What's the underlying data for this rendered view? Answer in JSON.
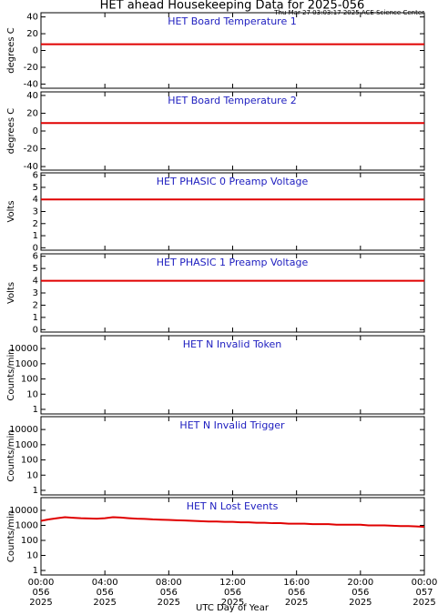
{
  "header": {
    "title": "HET ahead Housekeeping Data for 2025-056",
    "subtitle": "Thu Mar 27 03:03:17 2025 ACE Science Center"
  },
  "chart_data": [
    {
      "type": "line",
      "title": "HET Board Temperature 1",
      "ylabel": "degrees C",
      "xlim": [
        0,
        24
      ],
      "ylim": [
        -45,
        45
      ],
      "yticks": [
        -40,
        -20,
        0,
        20,
        40
      ],
      "log": false,
      "series": [
        {
          "name": "HET Board Temperature 1",
          "color": "#e00000",
          "x": [
            0,
            24
          ],
          "values": [
            7.5,
            7.5
          ]
        }
      ]
    },
    {
      "type": "line",
      "title": "HET Board Temperature 2",
      "ylabel": "degrees C",
      "xlim": [
        0,
        24
      ],
      "ylim": [
        -44,
        44
      ],
      "yticks": [
        -40,
        -20,
        0,
        20,
        40
      ],
      "log": false,
      "series": [
        {
          "name": "HET Board Temperature 2",
          "color": "#e00000",
          "x": [
            0,
            24
          ],
          "values": [
            9,
            9
          ]
        }
      ]
    },
    {
      "type": "line",
      "title": "HET PHASIC 0 Preamp Voltage",
      "ylabel": "Volts",
      "xlim": [
        0,
        24
      ],
      "ylim": [
        -0.2,
        6.2
      ],
      "yticks": [
        0,
        1,
        2,
        3,
        4,
        5,
        6
      ],
      "log": false,
      "series": [
        {
          "name": "HET PHASIC 0 Preamp Voltage",
          "color": "#e00000",
          "x": [
            0,
            24
          ],
          "values": [
            4,
            4
          ]
        }
      ]
    },
    {
      "type": "line",
      "title": "HET PHASIC 1 Preamp Voltage",
      "ylabel": "Volts",
      "xlim": [
        0,
        24
      ],
      "ylim": [
        -0.2,
        6.2
      ],
      "yticks": [
        0,
        1,
        2,
        3,
        4,
        5,
        6
      ],
      "log": false,
      "series": [
        {
          "name": "HET PHASIC 1 Preamp Voltage",
          "color": "#e00000",
          "x": [
            0,
            24
          ],
          "values": [
            4,
            4
          ]
        }
      ]
    },
    {
      "type": "line",
      "title": "HET N Invalid Token",
      "ylabel": "Counts/min",
      "xlim": [
        0,
        24
      ],
      "ylim": [
        0.5,
        70000
      ],
      "yticks": [
        1,
        10,
        100,
        1000,
        10000
      ],
      "log": true,
      "series": []
    },
    {
      "type": "line",
      "title": "HET N Invalid Trigger",
      "ylabel": "Counts/min",
      "xlim": [
        0,
        24
      ],
      "ylim": [
        0.5,
        70000
      ],
      "yticks": [
        1,
        10,
        100,
        1000,
        10000
      ],
      "log": true,
      "series": []
    },
    {
      "type": "line",
      "title": "HET N Lost Events",
      "ylabel": "Counts/min",
      "xlabel": "UTC Day of Year",
      "xlim": [
        0,
        24
      ],
      "ylim": [
        0.5,
        70000
      ],
      "yticks": [
        1,
        10,
        100,
        1000,
        10000
      ],
      "log": true,
      "xticks": [
        {
          "value": 0,
          "label": "00:00\n056\n2025"
        },
        {
          "value": 4,
          "label": "04:00\n056\n2025"
        },
        {
          "value": 8,
          "label": "08:00\n056\n2025"
        },
        {
          "value": 12,
          "label": "12:00\n056\n2025"
        },
        {
          "value": 16,
          "label": "16:00\n056\n2025"
        },
        {
          "value": 20,
          "label": "20:00\n056\n2025"
        },
        {
          "value": 24,
          "label": "00:00\n057\n2025"
        }
      ],
      "series": [
        {
          "name": "HET N Lost Events",
          "color": "#e00000",
          "x": [
            0,
            0.5,
            1,
            1.5,
            2,
            2.5,
            3,
            3.5,
            4,
            4.5,
            5,
            5.5,
            6,
            6.5,
            7,
            7.5,
            8,
            8.5,
            9,
            9.5,
            10,
            10.5,
            11,
            11.5,
            12,
            12.5,
            13,
            13.5,
            14,
            14.5,
            15,
            15.5,
            16,
            16.5,
            17,
            17.5,
            18,
            18.5,
            19,
            19.5,
            20,
            20.5,
            21,
            21.5,
            22,
            22.5,
            23,
            23.5,
            24
          ],
          "values": [
            2000,
            2500,
            3000,
            3500,
            3200,
            3000,
            2900,
            2800,
            3000,
            3500,
            3300,
            3000,
            2800,
            2700,
            2500,
            2400,
            2300,
            2200,
            2100,
            2000,
            1900,
            1800,
            1800,
            1700,
            1700,
            1600,
            1600,
            1500,
            1500,
            1400,
            1400,
            1300,
            1300,
            1300,
            1200,
            1200,
            1200,
            1100,
            1100,
            1100,
            1100,
            1000,
            1000,
            1000,
            950,
            900,
            900,
            850,
            800
          ]
        }
      ]
    }
  ]
}
